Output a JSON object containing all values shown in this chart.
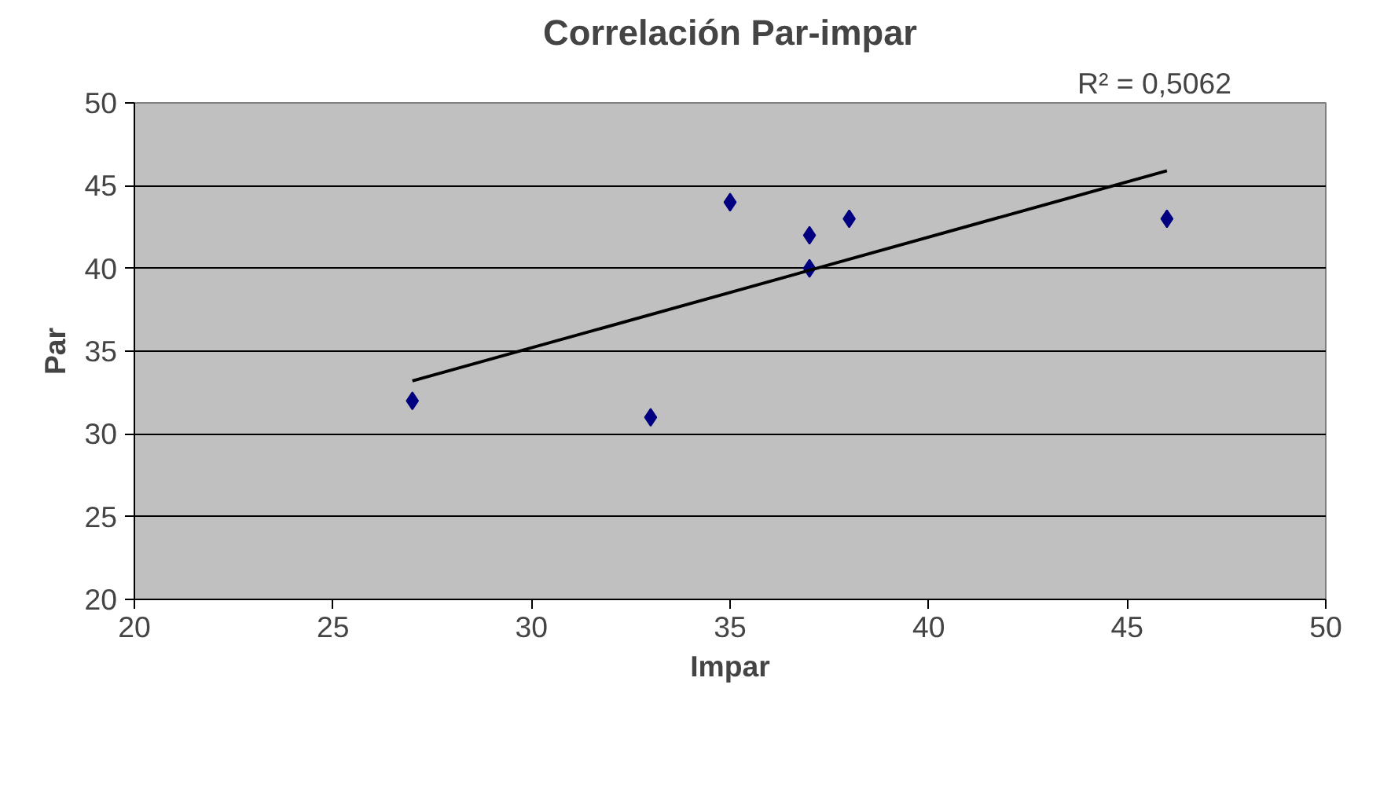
{
  "chart_data": {
    "type": "scatter",
    "title": "Correlación Par-impar",
    "xlabel": "Impar",
    "ylabel": "Par",
    "annotations": [
      "R² = 0,5062"
    ],
    "series": [
      {
        "color": "#000080",
        "marker": "diamond",
        "x": [
          27,
          33,
          35,
          37,
          37,
          38,
          46
        ],
        "values": [
          32,
          31,
          44,
          42,
          40,
          43,
          43
        ]
      },
      {
        "type": "line",
        "color": "#000000",
        "marker": "none",
        "line_style": "solid",
        "x": [
          27,
          46
        ],
        "values": [
          33.2,
          45.9
        ]
      }
    ],
    "xlim": [
      20,
      50
    ],
    "ylim": [
      20,
      50
    ],
    "xticks": [
      20,
      25,
      30,
      35,
      40,
      45,
      50
    ],
    "yticks": [
      20,
      25,
      30,
      35,
      40,
      45,
      50
    ],
    "grid": "y"
  }
}
